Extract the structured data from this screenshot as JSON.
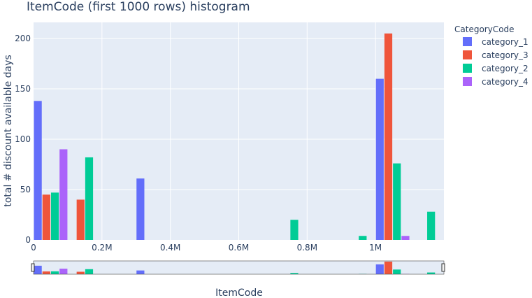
{
  "chart_data": {
    "type": "bar",
    "title": "ItemCode (first 1000 rows) histogram",
    "xlabel": "ItemCode",
    "ylabel": "total # discount available days",
    "x_tick_labels": [
      "0",
      "0.2M",
      "0.4M",
      "0.6M",
      "0.8M",
      "1M"
    ],
    "x_tick_values": [
      0,
      200000,
      400000,
      600000,
      800000,
      1000000
    ],
    "y_tick_labels": [
      "0",
      "50",
      "100",
      "150",
      "200"
    ],
    "y_tick_values": [
      0,
      50,
      100,
      150,
      200
    ],
    "xlim": [
      0,
      1200000
    ],
    "ylim": [
      0,
      216
    ],
    "bin_width": 100000,
    "grid": true,
    "legend_title": "CategoryCode",
    "legend_position": "right",
    "rangeslider": true,
    "series": [
      {
        "name": "category_1",
        "color": "#636efa",
        "bins": [
          {
            "x": 0,
            "y": 138
          },
          {
            "x": 300000,
            "y": 61
          },
          {
            "x": 1000000,
            "y": 160
          }
        ]
      },
      {
        "name": "category_3",
        "color": "#EF553B",
        "bins": [
          {
            "x": 0,
            "y": 45
          },
          {
            "x": 100000,
            "y": 40
          },
          {
            "x": 1000000,
            "y": 205
          }
        ]
      },
      {
        "name": "category_2",
        "color": "#00cc96",
        "bins": [
          {
            "x": 0,
            "y": 47
          },
          {
            "x": 100000,
            "y": 82
          },
          {
            "x": 700000,
            "y": 20
          },
          {
            "x": 900000,
            "y": 4
          },
          {
            "x": 1000000,
            "y": 76
          },
          {
            "x": 1100000,
            "y": 28
          }
        ]
      },
      {
        "name": "category_4",
        "color": "#ab63fa",
        "bins": [
          {
            "x": 0,
            "y": 90
          },
          {
            "x": 1000000,
            "y": 4
          }
        ]
      }
    ]
  }
}
